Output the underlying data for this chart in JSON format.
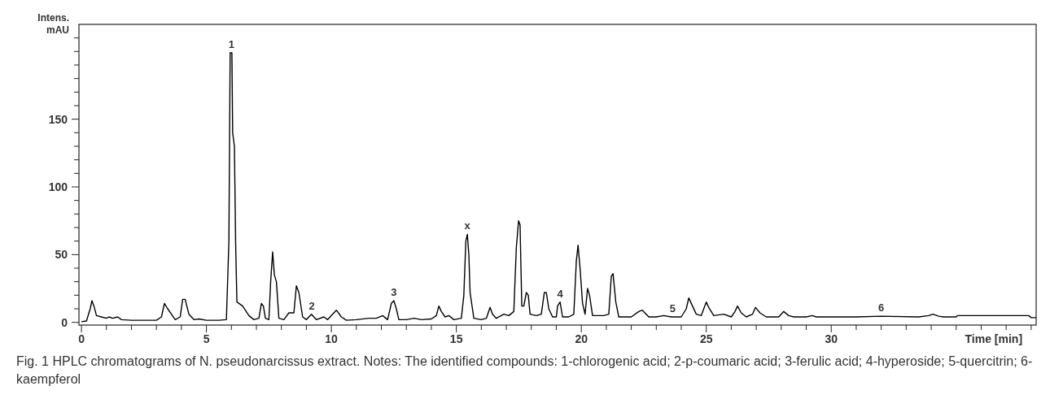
{
  "chart_data": {
    "type": "line",
    "xlabel": "Time [min]",
    "ylabel": "Intens. mAU",
    "xlim": [
      -0.1,
      38.2
    ],
    "ylim": [
      -2,
      220
    ],
    "xticks": [
      0,
      {
        "value": 1,
        "label": null
      },
      {
        "value": 2,
        "label": null
      },
      {
        "value": 3,
        "label": null
      },
      {
        "value": 4,
        "label": null
      },
      5,
      {
        "value": 6,
        "label": null
      },
      {
        "value": 7,
        "label": null
      },
      {
        "value": 8,
        "label": null
      },
      {
        "value": 9,
        "label": null
      },
      10,
      {
        "value": 11,
        "label": null
      },
      {
        "value": 12,
        "label": null
      },
      {
        "value": 13,
        "label": null
      },
      {
        "value": 14,
        "label": null
      },
      15,
      {
        "value": 16,
        "label": null
      },
      {
        "value": 17,
        "label": null
      },
      {
        "value": 18,
        "label": null
      },
      {
        "value": 19,
        "label": null
      },
      20,
      {
        "value": 21,
        "label": null
      },
      {
        "value": 22,
        "label": null
      },
      {
        "value": 23,
        "label": null
      },
      {
        "value": 24,
        "label": null
      },
      25,
      {
        "value": 26,
        "label": null
      },
      {
        "value": 27,
        "label": null
      },
      {
        "value": 28,
        "label": null
      },
      {
        "value": 29,
        "label": null
      },
      30,
      {
        "value": 31,
        "label": null
      },
      {
        "value": 32,
        "label": null
      },
      {
        "value": 33,
        "label": null
      },
      {
        "value": 34,
        "label": null
      },
      {
        "value": 35,
        "label": null
      },
      {
        "value": 36,
        "label": null
      },
      {
        "value": 37,
        "label": null
      },
      {
        "value": 38,
        "label": null
      }
    ],
    "yticks": [
      0,
      {
        "value": 10,
        "label": null
      },
      {
        "value": 20,
        "label": null
      },
      {
        "value": 30,
        "label": null
      },
      {
        "value": 40,
        "label": null
      },
      50,
      {
        "value": 60,
        "label": null
      },
      {
        "value": 70,
        "label": null
      },
      {
        "value": 80,
        "label": null
      },
      {
        "value": 90,
        "label": null
      },
      100,
      {
        "value": 110,
        "label": null
      },
      {
        "value": 120,
        "label": null
      },
      {
        "value": 130,
        "label": null
      },
      {
        "value": 140,
        "label": null
      },
      150,
      {
        "value": 160,
        "label": null
      },
      {
        "value": 170,
        "label": null
      },
      {
        "value": 180,
        "label": null
      },
      {
        "value": 190,
        "label": null
      },
      {
        "value": 200,
        "label": null
      },
      {
        "value": 210,
        "label": null
      }
    ],
    "grid": false,
    "marker": "none",
    "line_style": "solid",
    "series": [
      {
        "color": "#000000",
        "x": [
          0,
          0.2,
          0.35,
          0.42,
          0.5,
          0.6,
          0.8,
          1.0,
          1.1,
          1.25,
          1.45,
          1.6,
          2.0,
          2.5,
          3.0,
          3.2,
          3.32,
          3.45,
          3.6,
          3.75,
          3.95,
          4.05,
          4.15,
          4.3,
          4.5,
          4.7,
          5.0,
          5.5,
          5.8,
          5.9,
          5.95,
          6.02,
          6.05,
          6.12,
          6.17,
          6.22,
          6.45,
          6.7,
          6.9,
          7.1,
          7.2,
          7.28,
          7.36,
          7.5,
          7.57,
          7.65,
          7.72,
          7.8,
          7.9,
          8.1,
          8.3,
          8.5,
          8.6,
          8.7,
          8.85,
          9.0,
          9.2,
          9.4,
          9.7,
          9.85,
          10.0,
          10.2,
          10.4,
          10.6,
          11.0,
          11.5,
          11.8,
          12.05,
          12.25,
          12.4,
          12.5,
          12.6,
          12.7,
          13.0,
          13.3,
          13.6,
          14.0,
          14.2,
          14.3,
          14.4,
          14.55,
          14.7,
          14.9,
          15.2,
          15.3,
          15.38,
          15.44,
          15.5,
          15.55,
          15.7,
          16.0,
          16.2,
          16.35,
          16.45,
          16.6,
          16.9,
          17.1,
          17.3,
          17.4,
          17.49,
          17.55,
          17.58,
          17.62,
          17.7,
          17.8,
          17.88,
          17.95,
          18.2,
          18.4,
          18.52,
          18.6,
          18.7,
          18.85,
          19.0,
          19.05,
          19.15,
          19.25,
          19.5,
          19.7,
          19.8,
          19.87,
          19.95,
          20.05,
          20.15,
          20.25,
          20.33,
          20.45,
          20.9,
          21.1,
          21.2,
          21.27,
          21.38,
          21.5,
          22.0,
          22.3,
          22.44,
          22.7,
          23.0,
          23.3,
          23.6,
          24.0,
          24.2,
          24.3,
          24.45,
          24.6,
          24.8,
          25.0,
          25.1,
          25.3,
          25.7,
          26.0,
          26.15,
          26.25,
          26.4,
          26.6,
          26.85,
          26.97,
          27.15,
          27.4,
          27.9,
          28.1,
          28.3,
          28.5,
          29.0,
          29.25,
          29.4,
          31.0,
          32.0,
          33.5,
          33.9,
          34.07,
          34.3,
          34.5,
          35.0,
          35.05,
          37.9,
          38.0,
          38.2
        ],
        "values": [
          0.5,
          1,
          10,
          16,
          12,
          5,
          4,
          3,
          4,
          3,
          4,
          2,
          1.5,
          1.5,
          1.5,
          4,
          14,
          10,
          6,
          2,
          4,
          17,
          17,
          6,
          2,
          2.5,
          1.5,
          1.5,
          2,
          60,
          199,
          199,
          140,
          130,
          58,
          15,
          12,
          5,
          2,
          3,
          14,
          12,
          3,
          2,
          30,
          52,
          35,
          30,
          3,
          2,
          7,
          7,
          27,
          22,
          4,
          2,
          6,
          2,
          4,
          2,
          5,
          9,
          4,
          1.5,
          2,
          3,
          3,
          5,
          2,
          14,
          16,
          10,
          2,
          2,
          3,
          2,
          2.5,
          5,
          12,
          8,
          4,
          5,
          2,
          3,
          20,
          60,
          65,
          50,
          22,
          3,
          2,
          3,
          11,
          6,
          3,
          6,
          5,
          8,
          55,
          75,
          72,
          45,
          12,
          12,
          22,
          20,
          6,
          5,
          6,
          22,
          22,
          10,
          4,
          4,
          12,
          15,
          4,
          4,
          6,
          45,
          57,
          40,
          14,
          6,
          25,
          20,
          5,
          5,
          6,
          34,
          36,
          15,
          4,
          4,
          8,
          9,
          4,
          4,
          5,
          4,
          4,
          10,
          18,
          12,
          6,
          5,
          15,
          11,
          5,
          6,
          4,
          8,
          12,
          7,
          4,
          6,
          11,
          7,
          4,
          4,
          8,
          5,
          4,
          4,
          5,
          4,
          4,
          4.5,
          4,
          5,
          6,
          4.5,
          4,
          4,
          5,
          5,
          3.5,
          3.5
        ]
      }
    ],
    "annotations": [
      {
        "text": "1",
        "x": 6.0,
        "y": 199
      },
      {
        "text": "2",
        "x": 9.22,
        "y": 6
      },
      {
        "text": "3",
        "x": 12.5,
        "y": 16
      },
      {
        "text": "x",
        "x": 15.44,
        "y": 65
      },
      {
        "text": "4",
        "x": 19.15,
        "y": 15
      },
      {
        "text": "5",
        "x": 23.65,
        "y": 4
      },
      {
        "text": "6",
        "x": 32.0,
        "y": 4.5
      },
      "Fig. 1 HPLC chromatograms of N. pseudonarcissus extract. Notes: The identified compounds: 1-chlorogenic acid; 2-p-coumaric acid; 3-ferulic acid; 4-hyperoside; 5-quercitrin; 6-kaempferol"
    ]
  }
}
